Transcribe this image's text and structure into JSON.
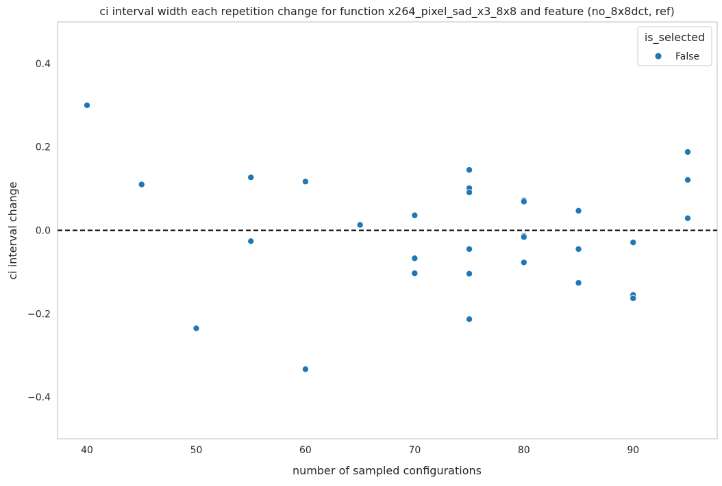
{
  "chart_data": {
    "type": "scatter",
    "title": "ci interval width each repetition change for function x264_pixel_sad_x3_8x8 and feature (no_8x8dct, ref)",
    "xlabel": "number of sampled configurations",
    "ylabel": "ci interval change",
    "xlim": [
      37.3,
      97.7
    ],
    "ylim": [
      -0.5,
      0.5
    ],
    "xticks": [
      40,
      50,
      60,
      70,
      80,
      90
    ],
    "xtick_labels": [
      "40",
      "50",
      "60",
      "70",
      "80",
      "90"
    ],
    "yticks": [
      0.4,
      0.2,
      0.0,
      -0.2,
      -0.4
    ],
    "ytick_labels": [
      "0.4",
      "0.2",
      "0.0",
      "−0.2",
      "−0.4"
    ],
    "grid": false,
    "reference_line": {
      "y": 0.0,
      "style": "dashed",
      "color": "#000000"
    },
    "legend": {
      "title": "is_selected",
      "placement": "top-right",
      "entries": [
        {
          "label": "False",
          "color": "#1f77b4"
        }
      ]
    },
    "series": [
      {
        "name": "False",
        "color": "#1f77b4",
        "points": [
          {
            "x": 40,
            "y": 0.3
          },
          {
            "x": 45,
            "y": 0.11
          },
          {
            "x": 50,
            "y": -0.235
          },
          {
            "x": 55,
            "y": 0.127
          },
          {
            "x": 55,
            "y": -0.026
          },
          {
            "x": 60,
            "y": 0.117
          },
          {
            "x": 60,
            "y": -0.333
          },
          {
            "x": 65,
            "y": 0.013
          },
          {
            "x": 70,
            "y": 0.036
          },
          {
            "x": 70,
            "y": -0.067
          },
          {
            "x": 70,
            "y": -0.103
          },
          {
            "x": 75,
            "y": 0.145
          },
          {
            "x": 75,
            "y": 0.101
          },
          {
            "x": 75,
            "y": 0.091
          },
          {
            "x": 75,
            "y": -0.045
          },
          {
            "x": 75,
            "y": -0.104
          },
          {
            "x": 75,
            "y": -0.213
          },
          {
            "x": 80,
            "y": 0.072
          },
          {
            "x": 80,
            "y": 0.069
          },
          {
            "x": 80,
            "y": -0.013
          },
          {
            "x": 80,
            "y": -0.016
          },
          {
            "x": 80,
            "y": -0.077
          },
          {
            "x": 85,
            "y": 0.047
          },
          {
            "x": 85,
            "y": -0.045
          },
          {
            "x": 85,
            "y": -0.126
          },
          {
            "x": 90,
            "y": -0.029
          },
          {
            "x": 90,
            "y": -0.155
          },
          {
            "x": 90,
            "y": -0.163
          },
          {
            "x": 95,
            "y": 0.188
          },
          {
            "x": 95,
            "y": 0.121
          },
          {
            "x": 95,
            "y": 0.029
          }
        ]
      }
    ]
  }
}
